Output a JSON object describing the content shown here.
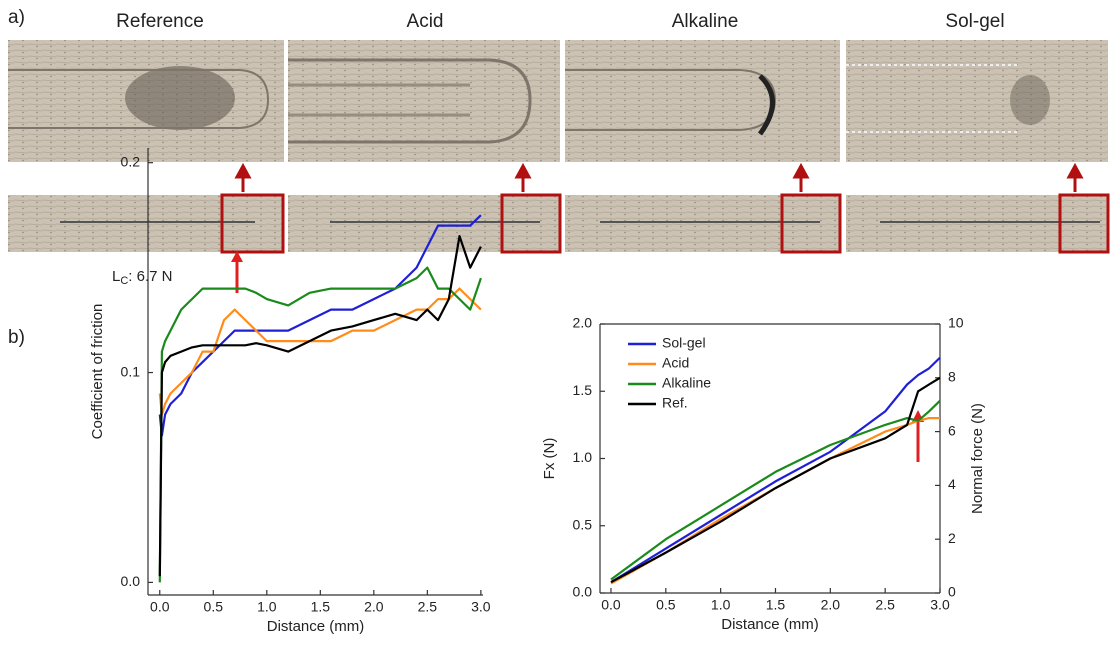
{
  "panel_a": {
    "label": "a)",
    "images": [
      "Reference",
      "Acid",
      "Alkaline",
      "Sol-gel"
    ],
    "annotation": {
      "main": "L",
      "sub": "C",
      "rest": ": 6.7 N"
    }
  },
  "panel_b": {
    "label": "b)"
  },
  "chart_data": [
    {
      "type": "line",
      "xlabel": "Distance (mm)",
      "ylabel": "Coefficient of friction",
      "xlim": [
        -0.11,
        3.02
      ],
      "ylim": [
        -0.006,
        0.207
      ],
      "xticks": [
        {
          "value": 0,
          "label": "0.0"
        },
        0.5,
        {
          "value": 1,
          "label": "1.0"
        },
        1.5,
        {
          "value": 2,
          "label": "2.0"
        },
        2.5,
        {
          "value": 3,
          "label": "3.0"
        }
      ],
      "yticks": [
        {
          "value": 0,
          "label": "0.0"
        },
        0.1,
        0.2
      ],
      "x": [
        0,
        0.02,
        0.05,
        0.1,
        0.2,
        0.3,
        0.4,
        0.5,
        0.6,
        0.7,
        0.8,
        0.9,
        1.0,
        1.2,
        1.4,
        1.6,
        1.8,
        2.0,
        2.2,
        2.4,
        2.5,
        2.6,
        2.7,
        2.8,
        2.9,
        3.0
      ],
      "series": [
        {
          "color": "#1f1fd6",
          "values": [
            0.08,
            0.07,
            0.08,
            0.085,
            0.09,
            0.1,
            0.105,
            0.11,
            0.115,
            0.12,
            0.12,
            0.12,
            0.12,
            0.12,
            0.125,
            0.13,
            0.13,
            0.135,
            0.14,
            0.15,
            0.16,
            0.17,
            0.17,
            0.17,
            0.17,
            0.175
          ]
        },
        {
          "color": "#ff8c1a",
          "values": [
            0.09,
            0.08,
            0.085,
            0.09,
            0.095,
            0.1,
            0.11,
            0.11,
            0.125,
            0.13,
            0.125,
            0.12,
            0.115,
            0.115,
            0.115,
            0.115,
            0.12,
            0.12,
            0.125,
            0.13,
            0.13,
            0.135,
            0.135,
            0.14,
            0.135,
            0.13
          ]
        },
        {
          "color": "#1a8a1a",
          "values": [
            0,
            0.11,
            0.115,
            0.12,
            0.13,
            0.135,
            0.14,
            0.14,
            0.14,
            0.14,
            0.14,
            0.138,
            0.135,
            0.132,
            0.138,
            0.14,
            0.14,
            0.14,
            0.14,
            0.145,
            0.15,
            0.14,
            0.14,
            0.135,
            0.13,
            0.145
          ]
        },
        {
          "color": "#000000",
          "values": [
            0.003,
            0.1,
            0.105,
            0.108,
            0.11,
            0.112,
            0.113,
            0.113,
            0.113,
            0.113,
            0.113,
            0.114,
            0.113,
            0.11,
            0.115,
            0.12,
            0.122,
            0.125,
            0.128,
            0.125,
            0.13,
            0.125,
            0.135,
            0.165,
            0.15,
            0.16
          ]
        }
      ]
    },
    {
      "type": "line",
      "xlabel": "Distance (mm)",
      "ylabel": "Fx (N)",
      "y2label": "Normal force (N)",
      "xlim": [
        -0.1,
        3.0
      ],
      "ylim": [
        0,
        2
      ],
      "y2lim": [
        0,
        10
      ],
      "xticks": [
        {
          "value": 0,
          "label": "0.0"
        },
        0.5,
        {
          "value": 1,
          "label": "1.0"
        },
        1.5,
        {
          "value": 2,
          "label": "2.0"
        },
        2.5,
        {
          "value": 3,
          "label": "3.0"
        }
      ],
      "yticks": [
        {
          "value": 0,
          "label": "0.0"
        },
        0.5,
        {
          "value": 1,
          "label": "1.0"
        },
        1.5,
        {
          "value": 2,
          "label": "2.0"
        }
      ],
      "y2ticks": [
        0,
        2,
        4,
        6,
        8,
        10
      ],
      "legend": "upper left",
      "x": [
        0,
        0.5,
        1.0,
        1.5,
        2.0,
        2.5,
        2.7,
        2.8,
        2.9,
        3.0
      ],
      "series": [
        {
          "name": "Sol-gel",
          "color": "#1f1fd6",
          "values": [
            0.08,
            0.33,
            0.58,
            0.83,
            1.05,
            1.35,
            1.55,
            1.62,
            1.67,
            1.75
          ]
        },
        {
          "name": "Acid",
          "color": "#ff8c1a",
          "values": [
            0.07,
            0.3,
            0.55,
            0.78,
            1.0,
            1.2,
            1.25,
            1.28,
            1.3,
            1.3
          ]
        },
        {
          "name": "Alkaline",
          "color": "#1a8a1a",
          "values": [
            0.1,
            0.4,
            0.65,
            0.9,
            1.1,
            1.25,
            1.3,
            1.28,
            1.35,
            1.43
          ]
        },
        {
          "name": "Ref.",
          "color": "#000000",
          "values": [
            0.08,
            0.3,
            0.53,
            0.78,
            1.0,
            1.15,
            1.25,
            1.5,
            1.55,
            1.6
          ]
        }
      ]
    }
  ]
}
